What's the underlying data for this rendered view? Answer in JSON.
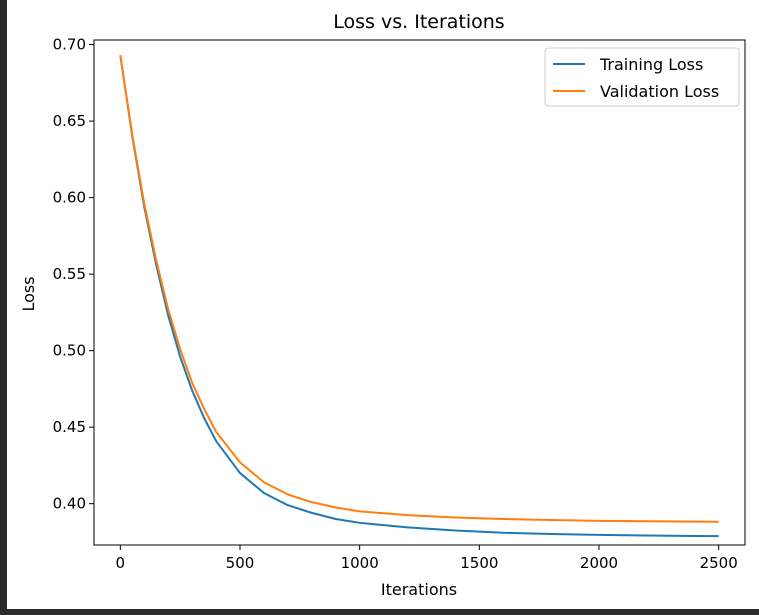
{
  "chart_data": {
    "type": "line",
    "title": "Loss vs. Iterations",
    "xlabel": "Iterations",
    "ylabel": "Loss",
    "xlim": [
      -110,
      2610
    ],
    "ylim": [
      0.373,
      0.703
    ],
    "xticks": [
      0,
      500,
      1000,
      1500,
      2000,
      2500
    ],
    "xtick_labels": [
      "0",
      "500",
      "1000",
      "1500",
      "2000",
      "2500"
    ],
    "yticks": [
      0.4,
      0.45,
      0.5,
      0.55,
      0.6,
      0.65,
      0.7
    ],
    "ytick_labels": [
      "0.40",
      "0.45",
      "0.50",
      "0.55",
      "0.60",
      "0.65",
      "0.70"
    ],
    "grid": false,
    "legend_position": "upper right",
    "x": [
      0,
      50,
      100,
      150,
      200,
      250,
      300,
      350,
      400,
      500,
      600,
      700,
      800,
      900,
      1000,
      1200,
      1400,
      1600,
      1800,
      2000,
      2200,
      2400,
      2500
    ],
    "series": [
      {
        "name": "Training Loss",
        "color": "#1f77b4",
        "values": [
          0.693,
          0.64,
          0.594,
          0.556,
          0.523,
          0.496,
          0.474,
          0.456,
          0.441,
          0.42,
          0.407,
          0.399,
          0.394,
          0.39,
          0.3875,
          0.3845,
          0.3825,
          0.381,
          0.3802,
          0.3796,
          0.3792,
          0.3789,
          0.3788
        ]
      },
      {
        "name": "Validation Loss",
        "color": "#ff7f0e",
        "values": [
          0.693,
          0.641,
          0.596,
          0.559,
          0.527,
          0.501,
          0.479,
          0.462,
          0.447,
          0.427,
          0.414,
          0.406,
          0.401,
          0.3975,
          0.395,
          0.3925,
          0.391,
          0.39,
          0.3893,
          0.3888,
          0.3885,
          0.3883,
          0.3882
        ]
      }
    ]
  }
}
